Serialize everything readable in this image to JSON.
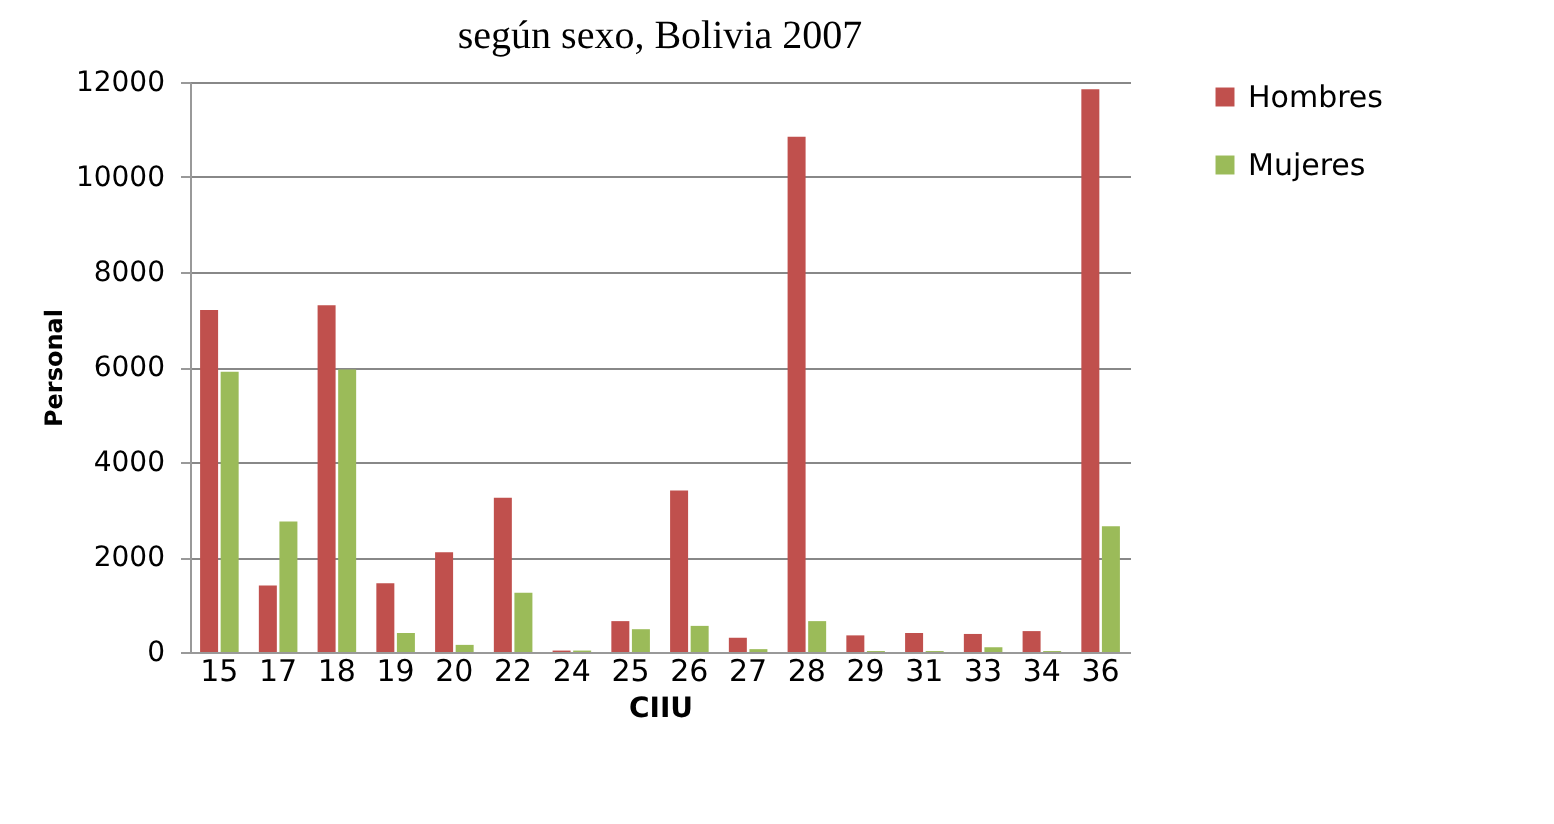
{
  "chart_data": {
    "type": "bar",
    "title": "según sexo, Bolivia 2007",
    "xlabel": "CIIU",
    "ylabel": "Personal",
    "categories": [
      "15",
      "17",
      "18",
      "19",
      "20",
      "22",
      "24",
      "25",
      "26",
      "27",
      "28",
      "29",
      "31",
      "33",
      "34",
      "36"
    ],
    "series": [
      {
        "name": "Hombres",
        "color": "#c0504d",
        "values": [
          7200,
          1400,
          7300,
          1450,
          2100,
          3250,
          30,
          650,
          3400,
          300,
          10850,
          350,
          400,
          380,
          440,
          11850
        ]
      },
      {
        "name": "Mujeres",
        "color": "#9bbb59",
        "values": [
          5900,
          2750,
          5950,
          400,
          150,
          1250,
          30,
          480,
          550,
          60,
          650,
          20,
          20,
          100,
          20,
          2650
        ]
      }
    ],
    "ylim": [
      0,
      12000
    ],
    "yticks": [
      0,
      2000,
      4000,
      6000,
      8000,
      10000,
      12000
    ],
    "grid": "y",
    "legend": "right"
  }
}
